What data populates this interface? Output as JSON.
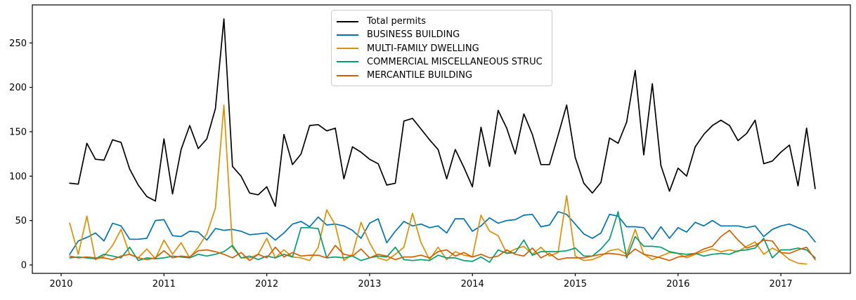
{
  "chart_data": {
    "type": "line",
    "title": "",
    "xlabel": "",
    "ylabel": "",
    "grid": false,
    "background": "#ffffff",
    "axes_color": "#000000",
    "legend_position": "upper center",
    "x_axis": {
      "unit": "month",
      "start": "2010-01",
      "tick_labels": [
        "2010",
        "2011",
        "2012",
        "2013",
        "2014",
        "2015",
        "2016",
        "2017"
      ],
      "tick_values": [
        2010,
        2011,
        2012,
        2013,
        2014,
        2015,
        2016,
        2017
      ]
    },
    "y_axis": {
      "tick_labels": [
        "0",
        "50",
        "100",
        "150",
        "200",
        "250"
      ],
      "tick_values": [
        0,
        50,
        100,
        150,
        200,
        250
      ],
      "ylim": [
        -10,
        293
      ]
    },
    "series": [
      {
        "name": "Total permits",
        "color": "#000000",
        "start": "2010-02",
        "end": "2017-05",
        "values": [
          92,
          91,
          137,
          119,
          118,
          141,
          138,
          108,
          90,
          77,
          72,
          142,
          80,
          130,
          157,
          131,
          142,
          176,
          277,
          111,
          100,
          81,
          79,
          88,
          66,
          147,
          113,
          125,
          157,
          158,
          151,
          154,
          97,
          133,
          127,
          119,
          114,
          90,
          92,
          162,
          165,
          153,
          141,
          130,
          97,
          130,
          110,
          88,
          155,
          111,
          174,
          154,
          125,
          170,
          147,
          113,
          113,
          146,
          180,
          121,
          92,
          81,
          93,
          143,
          137,
          161,
          219,
          124,
          204,
          112,
          83,
          109,
          100,
          133,
          147,
          157,
          163,
          157,
          140,
          148,
          163,
          114,
          117,
          127,
          135,
          89,
          154,
          86
        ]
      },
      {
        "name": "BUSINESS BUILDING",
        "color": "#0173b2",
        "start": "2010-02",
        "end": "2017-05",
        "values": [
          12,
          27,
          31,
          36,
          27,
          47,
          44,
          29,
          29,
          30,
          50,
          51,
          33,
          32,
          38,
          37,
          28,
          41,
          39,
          40,
          38,
          34,
          35,
          36,
          28,
          36,
          46,
          49,
          43,
          54,
          45,
          46,
          44,
          39,
          30,
          47,
          52,
          25,
          38,
          49,
          44,
          46,
          42,
          44,
          36,
          52,
          52,
          38,
          44,
          53,
          47,
          50,
          51,
          56,
          57,
          43,
          45,
          60,
          57,
          46,
          35,
          30,
          36,
          57,
          55,
          43,
          43,
          42,
          29,
          43,
          30,
          42,
          37,
          48,
          44,
          50,
          44,
          44,
          44,
          42,
          44,
          32,
          40,
          44,
          46,
          42,
          38,
          26
        ]
      },
      {
        "name": "MULTI-FAMILY DWELLING",
        "color": "#de8f05",
        "start": "2010-02",
        "end": "2017-04",
        "values": [
          47,
          12,
          55,
          6,
          10,
          22,
          40,
          12,
          8,
          18,
          7,
          28,
          12,
          25,
          8,
          20,
          35,
          64,
          180,
          20,
          8,
          8,
          12,
          30,
          8,
          17,
          9,
          8,
          5,
          20,
          62,
          45,
          5,
          12,
          48,
          25,
          8,
          5,
          12,
          20,
          58,
          25,
          6,
          20,
          6,
          15,
          11,
          9,
          56,
          38,
          33,
          13,
          18,
          21,
          12,
          20,
          10,
          14,
          78,
          10,
          5,
          6,
          10,
          16,
          18,
          12,
          40,
          12,
          6,
          10,
          14,
          13,
          8,
          12,
          15,
          18,
          15,
          17,
          15,
          21,
          26,
          12,
          19,
          14,
          6,
          2,
          1
        ]
      },
      {
        "name": "COMMERCIAL MISCELLANEOUS STRUC",
        "color": "#029e73",
        "start": "2010-02",
        "end": "2017-05",
        "values": [
          8,
          9,
          8,
          7,
          12,
          10,
          8,
          20,
          5,
          8,
          7,
          8,
          10,
          9,
          8,
          12,
          10,
          12,
          15,
          22,
          8,
          10,
          6,
          10,
          8,
          12,
          9,
          42,
          42,
          41,
          8,
          9,
          8,
          10,
          5,
          8,
          10,
          9,
          20,
          6,
          5,
          6,
          5,
          11,
          8,
          8,
          5,
          4,
          9,
          3,
          17,
          13,
          14,
          28,
          11,
          15,
          15,
          15,
          16,
          19,
          10,
          10,
          18,
          29,
          60,
          8,
          32,
          21,
          21,
          20,
          15,
          13,
          12,
          13,
          10,
          12,
          13,
          12,
          16,
          17,
          19,
          30,
          8,
          17,
          17,
          19,
          17,
          8
        ]
      },
      {
        "name": "MERCANTILE BUILDING",
        "color": "#d55e00",
        "start": "2010-02",
        "end": "2017-05",
        "values": [
          10,
          8,
          9,
          8,
          8,
          6,
          10,
          12,
          8,
          6,
          8,
          16,
          8,
          10,
          9,
          16,
          17,
          15,
          12,
          8,
          14,
          5,
          12,
          8,
          20,
          9,
          14,
          10,
          11,
          11,
          8,
          22,
          12,
          10,
          18,
          8,
          12,
          10,
          6,
          9,
          9,
          11,
          8,
          15,
          17,
          10,
          14,
          9,
          12,
          8,
          10,
          17,
          12,
          10,
          19,
          8,
          13,
          6,
          8,
          8,
          8,
          10,
          12,
          13,
          12,
          10,
          18,
          12,
          10,
          8,
          5,
          9,
          10,
          13,
          18,
          21,
          32,
          39,
          28,
          19,
          22,
          28,
          27,
          14,
          13,
          17,
          20,
          6
        ]
      }
    ]
  }
}
